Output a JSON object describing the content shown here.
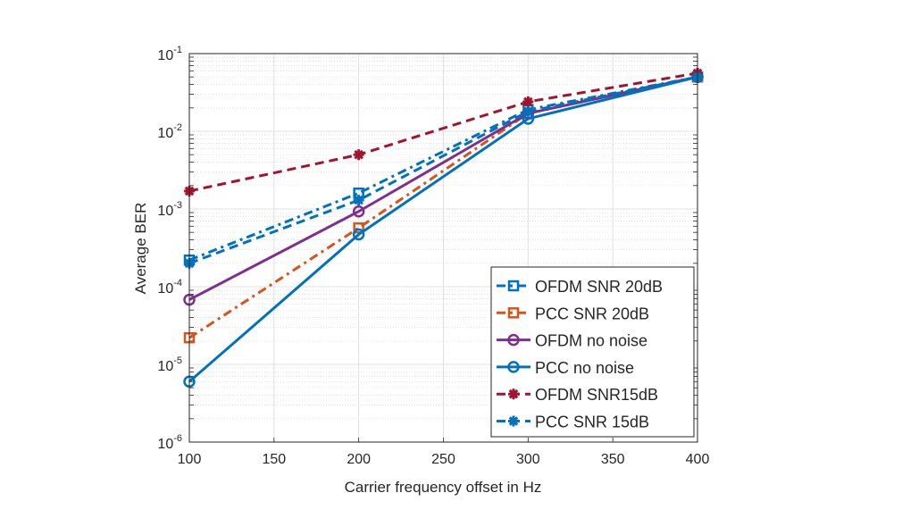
{
  "chart_data": {
    "type": "line",
    "title": "",
    "xlabel": "Carrier frequency offset in Hz",
    "ylabel": "Average BER",
    "xlim": [
      100,
      400
    ],
    "ylim": [
      1e-06,
      0.1
    ],
    "yscale": "log",
    "grid": true,
    "minor_grid": true,
    "legend_position": "bottom-right",
    "x_ticks": [
      "100",
      "150",
      "200",
      "250",
      "300",
      "350",
      "400"
    ],
    "y_ticks": [
      {
        "base": "10",
        "exp": "-6"
      },
      {
        "base": "10",
        "exp": "-5"
      },
      {
        "base": "10",
        "exp": "-4"
      },
      {
        "base": "10",
        "exp": "-3"
      },
      {
        "base": "10",
        "exp": "-2"
      },
      {
        "base": "10",
        "exp": "-1"
      }
    ],
    "x": [
      100,
      200,
      300,
      400
    ],
    "series": [
      {
        "name": "OFDM SNR 20dB",
        "color": "#0072BD",
        "dash": "dashdot",
        "marker": "square",
        "values": [
          0.00022,
          0.0016,
          0.019,
          0.05
        ]
      },
      {
        "name": "PCC SNR 20dB",
        "color": "#D95319",
        "dash": "dashdot",
        "marker": "square",
        "values": [
          2.2e-05,
          0.00057,
          0.017,
          0.05
        ]
      },
      {
        "name": "OFDM no noise",
        "color": "#7E2F8E",
        "dash": "solid",
        "marker": "circle",
        "values": [
          6.8e-05,
          0.00093,
          0.017,
          0.05
        ]
      },
      {
        "name": "PCC no noise",
        "color": "#0072BD",
        "dash": "solid",
        "marker": "circle",
        "values": [
          6e-06,
          0.00047,
          0.0145,
          0.05
        ]
      },
      {
        "name": "OFDM SNR15dB",
        "color": "#A2142F",
        "dash": "dashed",
        "marker": "star",
        "values": [
          0.0017,
          0.005,
          0.024,
          0.056
        ]
      },
      {
        "name": "PCC SNR 15dB",
        "color": "#0072BD",
        "dash": "dashed",
        "marker": "star",
        "values": [
          0.0002,
          0.0013,
          0.018,
          0.05
        ]
      }
    ]
  }
}
